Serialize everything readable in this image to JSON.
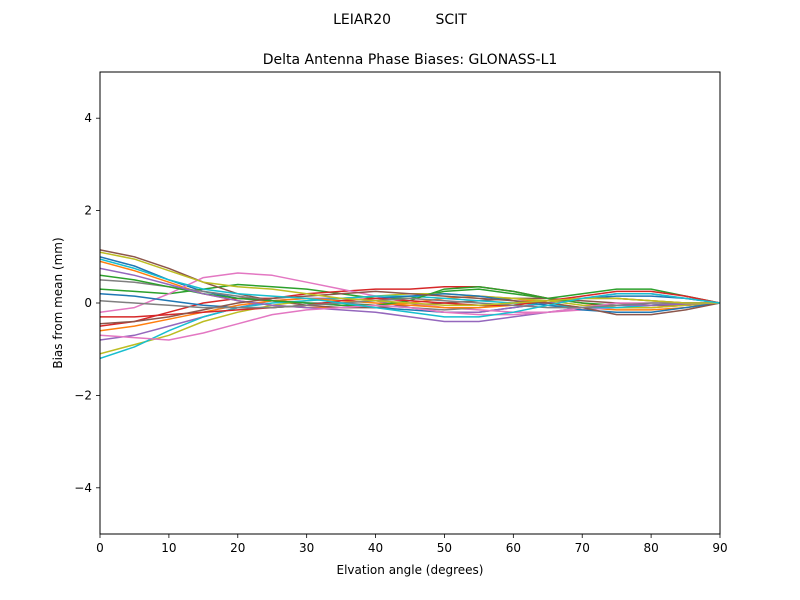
{
  "chart_data": {
    "type": "line",
    "suptitle": "LEIAR20          SCIT",
    "title": "Delta Antenna Phase Biases: GLONASS-L1",
    "xlabel": "Elvation angle (degrees)",
    "ylabel": "Bias from mean (mm)",
    "xlim": [
      0,
      90
    ],
    "ylim": [
      -5,
      5
    ],
    "xticks": [
      0,
      10,
      20,
      30,
      40,
      50,
      60,
      70,
      80,
      90
    ],
    "yticks": [
      -4,
      -2,
      0,
      2,
      4
    ],
    "ytick_labels": [
      "−4",
      "−2",
      "0",
      "2",
      "4"
    ],
    "grid": false,
    "legend": "none",
    "x": [
      0,
      5,
      10,
      15,
      20,
      25,
      30,
      35,
      40,
      45,
      50,
      55,
      60,
      65,
      70,
      75,
      80,
      85,
      90
    ],
    "series": [
      {
        "color": "#1f77b4",
        "values": [
          1.0,
          0.8,
          0.5,
          0.25,
          0.1,
          0.05,
          0.0,
          -0.05,
          -0.1,
          -0.15,
          -0.2,
          -0.2,
          -0.1,
          0.0,
          0.1,
          0.15,
          0.15,
          0.1,
          0.0
        ]
      },
      {
        "color": "#ff7f0e",
        "values": [
          0.9,
          0.7,
          0.45,
          0.2,
          0.05,
          -0.05,
          -0.1,
          -0.1,
          -0.05,
          0.0,
          0.1,
          0.15,
          0.1,
          0.0,
          -0.1,
          -0.15,
          -0.15,
          -0.1,
          0.0
        ]
      },
      {
        "color": "#2ca02c",
        "values": [
          0.3,
          0.25,
          0.2,
          0.3,
          0.4,
          0.35,
          0.3,
          0.2,
          0.1,
          0.1,
          0.25,
          0.3,
          0.2,
          0.1,
          0.2,
          0.3,
          0.3,
          0.15,
          0.0
        ]
      },
      {
        "color": "#d62728",
        "values": [
          -0.5,
          -0.4,
          -0.2,
          0.0,
          0.1,
          0.1,
          0.2,
          0.25,
          0.3,
          0.3,
          0.35,
          0.35,
          0.25,
          0.1,
          0.0,
          -0.1,
          -0.1,
          -0.05,
          0.0
        ]
      },
      {
        "color": "#9467bd",
        "values": [
          -0.8,
          -0.7,
          -0.5,
          -0.3,
          -0.1,
          0.05,
          0.1,
          0.1,
          0.05,
          -0.1,
          -0.2,
          -0.2,
          -0.1,
          0.0,
          0.1,
          0.2,
          0.2,
          0.1,
          0.0
        ]
      },
      {
        "color": "#8c564b",
        "values": [
          1.15,
          1.0,
          0.75,
          0.45,
          0.2,
          0.05,
          -0.05,
          -0.1,
          -0.1,
          -0.05,
          0.0,
          0.05,
          0.1,
          0.1,
          0.05,
          0.0,
          -0.05,
          -0.05,
          0.0
        ]
      },
      {
        "color": "#e377c2",
        "values": [
          -0.2,
          -0.1,
          0.2,
          0.55,
          0.65,
          0.6,
          0.45,
          0.3,
          0.15,
          0.0,
          -0.1,
          -0.15,
          -0.2,
          -0.2,
          -0.15,
          -0.1,
          -0.05,
          0.0,
          0.0
        ]
      },
      {
        "color": "#7f7f7f",
        "values": [
          0.5,
          0.45,
          0.35,
          0.25,
          0.15,
          0.05,
          0.0,
          0.0,
          -0.05,
          -0.1,
          -0.15,
          -0.1,
          0.0,
          0.05,
          0.1,
          0.1,
          0.05,
          0.0,
          0.0
        ]
      },
      {
        "color": "#bcbd22",
        "values": [
          -1.1,
          -0.9,
          -0.7,
          -0.4,
          -0.2,
          -0.05,
          0.05,
          0.1,
          0.15,
          0.2,
          0.2,
          0.15,
          0.1,
          0.05,
          -0.05,
          -0.1,
          -0.1,
          -0.05,
          0.0
        ]
      },
      {
        "color": "#17becf",
        "values": [
          -1.2,
          -0.95,
          -0.6,
          -0.3,
          -0.1,
          0.0,
          0.05,
          0.1,
          0.15,
          0.15,
          0.1,
          0.05,
          0.0,
          -0.05,
          -0.1,
          -0.1,
          -0.05,
          0.0,
          0.0
        ]
      },
      {
        "color": "#1f77b4",
        "values": [
          0.2,
          0.15,
          0.05,
          -0.05,
          -0.1,
          -0.1,
          -0.05,
          0.05,
          0.1,
          0.15,
          0.2,
          0.15,
          0.05,
          -0.05,
          -0.15,
          -0.2,
          -0.2,
          -0.1,
          0.0
        ]
      },
      {
        "color": "#ff7f0e",
        "values": [
          -0.6,
          -0.5,
          -0.35,
          -0.2,
          -0.05,
          0.05,
          0.1,
          0.05,
          0.0,
          -0.05,
          -0.1,
          -0.1,
          -0.05,
          0.05,
          0.1,
          0.1,
          0.05,
          0.0,
          0.0
        ]
      },
      {
        "color": "#2ca02c",
        "values": [
          0.6,
          0.5,
          0.35,
          0.2,
          0.1,
          0.05,
          0.0,
          -0.05,
          -0.05,
          0.05,
          0.3,
          0.35,
          0.25,
          0.1,
          0.0,
          -0.05,
          -0.05,
          0.0,
          0.0
        ]
      },
      {
        "color": "#d62728",
        "values": [
          -0.3,
          -0.3,
          -0.25,
          -0.2,
          -0.15,
          -0.1,
          -0.05,
          0.05,
          0.1,
          0.05,
          0.0,
          -0.05,
          -0.05,
          0.05,
          0.15,
          0.25,
          0.25,
          0.15,
          0.0
        ]
      },
      {
        "color": "#9467bd",
        "values": [
          0.75,
          0.6,
          0.4,
          0.2,
          0.05,
          -0.05,
          -0.1,
          -0.15,
          -0.2,
          -0.3,
          -0.4,
          -0.4,
          -0.3,
          -0.2,
          -0.1,
          -0.05,
          -0.05,
          -0.02,
          0.0
        ]
      },
      {
        "color": "#8c564b",
        "values": [
          -0.45,
          -0.4,
          -0.3,
          -0.15,
          0.0,
          0.1,
          0.15,
          0.2,
          0.25,
          0.2,
          0.15,
          0.1,
          0.05,
          0.0,
          -0.1,
          -0.25,
          -0.25,
          -0.15,
          0.0
        ]
      },
      {
        "color": "#e377c2",
        "values": [
          -0.7,
          -0.75,
          -0.8,
          -0.65,
          -0.45,
          -0.25,
          -0.15,
          -0.1,
          -0.05,
          -0.1,
          -0.2,
          -0.25,
          -0.25,
          -0.2,
          -0.1,
          0.0,
          0.0,
          0.0,
          0.0
        ]
      },
      {
        "color": "#7f7f7f",
        "values": [
          0.05,
          0.0,
          -0.05,
          -0.1,
          -0.1,
          -0.1,
          -0.05,
          0.0,
          0.05,
          0.1,
          0.05,
          0.0,
          -0.05,
          -0.1,
          -0.1,
          -0.05,
          0.0,
          0.0,
          0.0
        ]
      },
      {
        "color": "#bcbd22",
        "values": [
          1.1,
          0.95,
          0.7,
          0.45,
          0.35,
          0.3,
          0.2,
          0.1,
          0.05,
          0.0,
          -0.05,
          -0.05,
          0.0,
          0.05,
          0.1,
          0.1,
          0.05,
          0.0,
          0.0
        ]
      },
      {
        "color": "#17becf",
        "values": [
          0.95,
          0.75,
          0.5,
          0.3,
          0.2,
          0.15,
          0.1,
          0.0,
          -0.1,
          -0.2,
          -0.3,
          -0.3,
          -0.2,
          -0.05,
          0.1,
          0.2,
          0.2,
          0.1,
          0.0
        ]
      }
    ]
  }
}
